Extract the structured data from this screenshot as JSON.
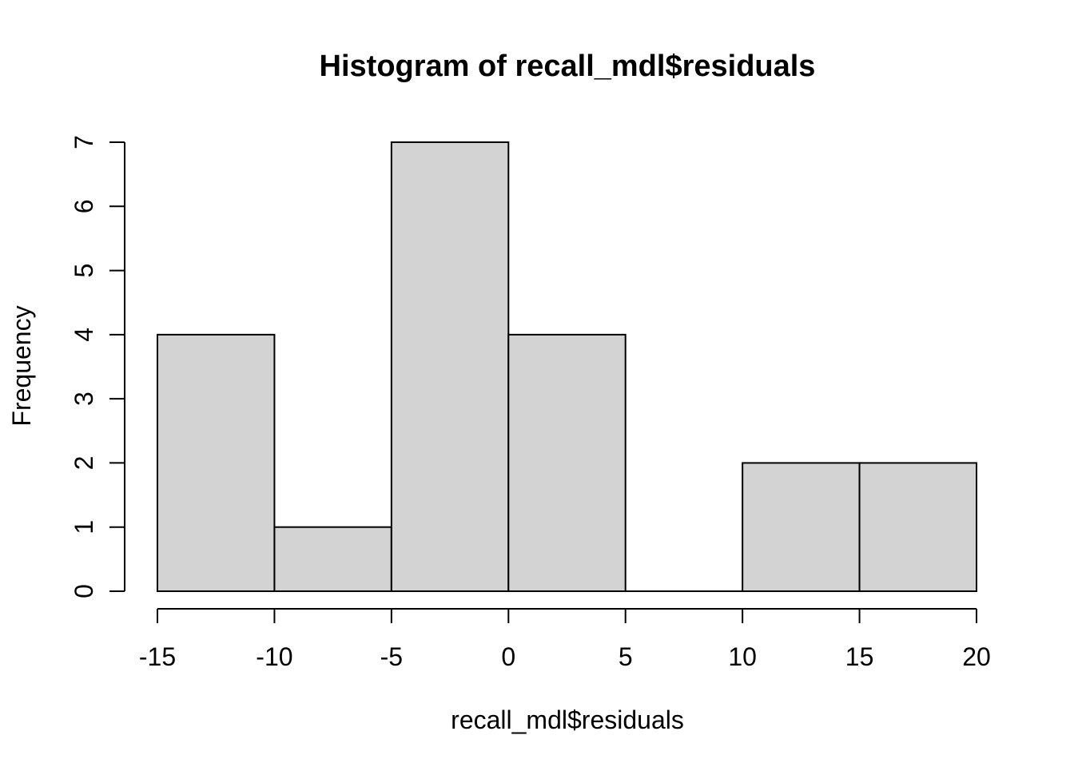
{
  "chart_data": {
    "type": "bar",
    "subtype": "histogram",
    "title": "Histogram of recall_mdl$residuals",
    "xlabel": "recall_mdl$residuals",
    "ylabel": "Frequency",
    "bin_edges": [
      -15,
      -10,
      -5,
      0,
      5,
      10,
      15,
      20
    ],
    "counts": [
      4,
      1,
      7,
      4,
      0,
      2,
      2
    ],
    "x_ticks": [
      "-15",
      "-10",
      "-5",
      "0",
      "5",
      "10",
      "15",
      "20"
    ],
    "x_tick_values": [
      -15,
      -10,
      -5,
      0,
      5,
      10,
      15,
      20
    ],
    "y_ticks": [
      "0",
      "1",
      "2",
      "3",
      "4",
      "5",
      "6",
      "7"
    ],
    "y_tick_values": [
      0,
      1,
      2,
      3,
      4,
      5,
      6,
      7
    ],
    "xlim": [
      -15,
      20
    ],
    "ylim": [
      0,
      7
    ],
    "grid": false,
    "legend": null,
    "bar_fill": "#d3d3d3",
    "bar_stroke": "#000000",
    "axis_color": "#000000",
    "text_color": "#000000",
    "background": "#ffffff"
  }
}
